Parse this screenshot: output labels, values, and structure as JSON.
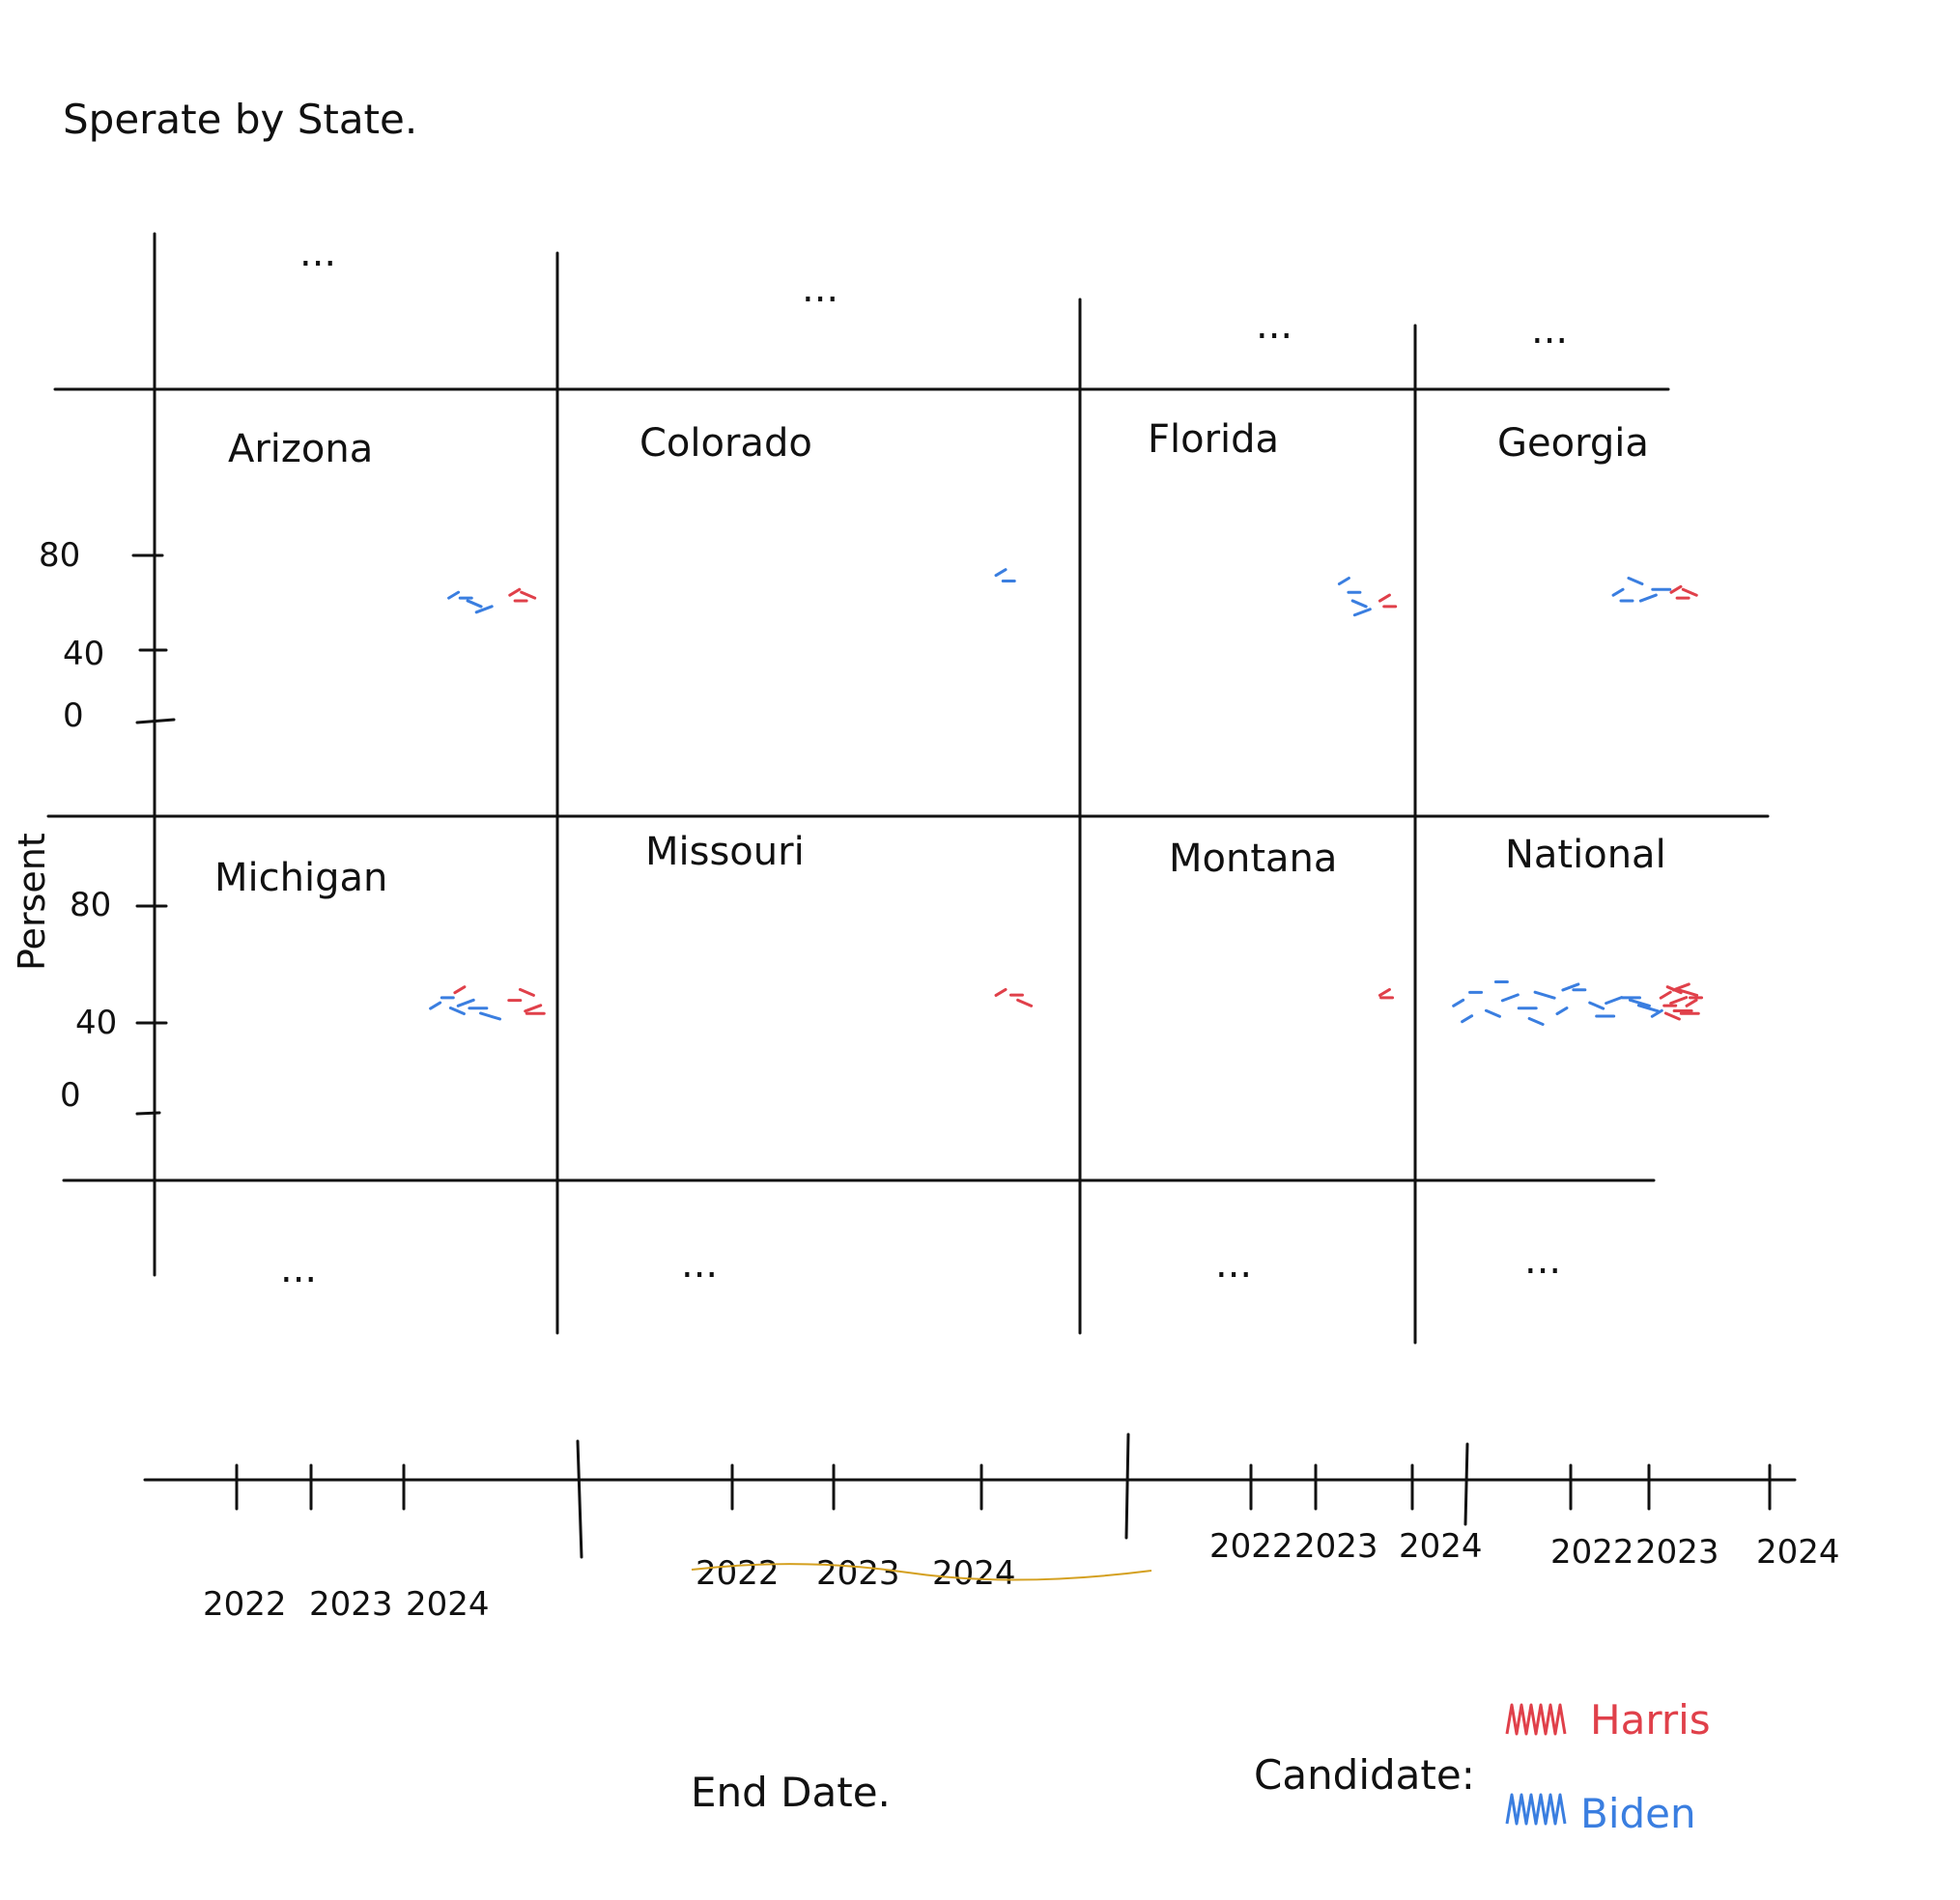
{
  "page_title": "Sperate by State.",
  "chart_data": {
    "type": "scatter",
    "title": "Sperate by State.",
    "xlabel": "End Date.",
    "ylabel": "Persent",
    "y_ticks": [
      "80",
      "40",
      "0"
    ],
    "x_ticks": [
      "2022",
      "2023",
      "2024"
    ],
    "legend_title": "Candidate:",
    "legend_placement": "bottom-right",
    "colors": {
      "Harris": "#e0404a",
      "Biden": "#3a7ee0"
    },
    "ylim": [
      0,
      100
    ],
    "xlim": [
      2021.6,
      2024.9
    ],
    "facets": [
      {
        "name": "Arizona",
        "series": [
          {
            "name": "Biden",
            "x": [
              2024.05,
              2024.15,
              2024.22,
              2024.3
            ],
            "y": [
              45,
              44,
              42,
              40
            ]
          },
          {
            "name": "Harris",
            "x": [
              2024.55,
              2024.6,
              2024.66
            ],
            "y": [
              46,
              43,
              45
            ]
          }
        ]
      },
      {
        "name": "Colorado",
        "series": [
          {
            "name": "Biden",
            "x": [
              2024.4,
              2024.45
            ],
            "y": [
              53,
              50
            ]
          },
          {
            "name": "Harris",
            "x": [],
            "y": []
          }
        ]
      },
      {
        "name": "Florida",
        "series": [
          {
            "name": "Biden",
            "x": [
              2024.2,
              2024.3,
              2024.35,
              2024.38
            ],
            "y": [
              50,
              46,
              42,
              39
            ]
          },
          {
            "name": "Harris",
            "x": [
              2024.6,
              2024.65
            ],
            "y": [
              44,
              41
            ]
          }
        ]
      },
      {
        "name": "Georgia",
        "series": [
          {
            "name": "Biden",
            "x": [
              2023.95,
              2024.05,
              2024.15,
              2024.3,
              2024.45
            ],
            "y": [
              46,
              43,
              50,
              44,
              47
            ]
          },
          {
            "name": "Harris",
            "x": [
              2024.62,
              2024.7,
              2024.78
            ],
            "y": [
              47,
              44,
              46
            ]
          }
        ]
      },
      {
        "name": "Michigan",
        "series": [
          {
            "name": "Biden",
            "x": [
              2023.9,
              2024.0,
              2024.08,
              2024.15,
              2024.25,
              2024.35
            ],
            "y": [
              41,
              44,
              39,
              42,
              40,
              37
            ]
          },
          {
            "name": "Harris",
            "x": [
              2024.1,
              2024.55,
              2024.65,
              2024.7,
              2024.72
            ],
            "y": [
              47,
              43,
              46,
              40,
              38
            ]
          }
        ]
      },
      {
        "name": "Missouri",
        "series": [
          {
            "name": "Biden",
            "x": [],
            "y": []
          },
          {
            "name": "Harris",
            "x": [
              2024.4,
              2024.5,
              2024.55
            ],
            "y": [
              46,
              45,
              42
            ]
          }
        ]
      },
      {
        "name": "Montana",
        "series": [
          {
            "name": "Biden",
            "x": [],
            "y": []
          },
          {
            "name": "Harris",
            "x": [
              2024.6,
              2024.62
            ],
            "y": [
              46,
              44
            ]
          }
        ]
      },
      {
        "name": "National",
        "series": [
          {
            "name": "Biden",
            "x": [
              2022.1,
              2022.3,
              2022.5,
              2022.7,
              2022.9,
              2023.1,
              2023.3,
              2023.5,
              2023.7,
              2023.9,
              2024.1,
              2024.3,
              2022.2,
              2022.6,
              2023.0,
              2023.4,
              2023.8,
              2024.2,
              2024.4
            ],
            "y": [
              42,
              46,
              38,
              44,
              40,
              45,
              39,
              47,
              41,
              43,
              44,
              40,
              36,
              50,
              35,
              48,
              37,
              42,
              38
            ]
          },
          {
            "name": "Harris",
            "x": [
              2024.5,
              2024.55,
              2024.6,
              2024.65,
              2024.7,
              2024.75,
              2024.8,
              2024.85,
              2024.58,
              2024.68,
              2024.78
            ],
            "y": [
              45,
              41,
              47,
              43,
              39,
              46,
              42,
              44,
              37,
              48,
              38
            ]
          }
        ]
      }
    ],
    "top_ellipses": [
      "...",
      "...",
      "...",
      "..."
    ],
    "bottom_ellipses": [
      "...",
      "...",
      "...",
      "..."
    ]
  }
}
